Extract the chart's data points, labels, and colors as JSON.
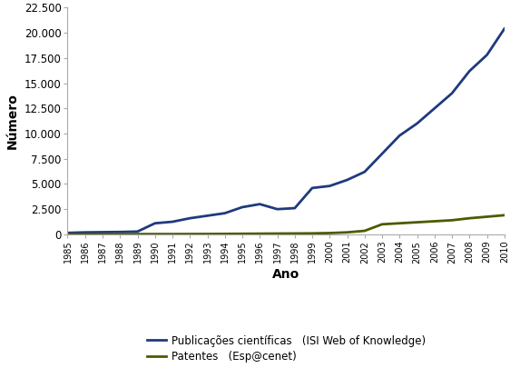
{
  "years": [
    1985,
    1986,
    1987,
    1988,
    1989,
    1990,
    1991,
    1992,
    1993,
    1994,
    1995,
    1996,
    1997,
    1998,
    1999,
    2000,
    2001,
    2002,
    2003,
    2004,
    2005,
    2006,
    2007,
    2008,
    2009,
    2010
  ],
  "publications": [
    150,
    200,
    220,
    240,
    280,
    1100,
    1250,
    1600,
    1850,
    2100,
    2700,
    3000,
    2500,
    2600,
    4600,
    4800,
    5400,
    6200,
    8000,
    9800,
    11000,
    12500,
    14000,
    16200,
    17800,
    20400
  ],
  "patents": [
    10,
    15,
    20,
    20,
    25,
    30,
    30,
    35,
    40,
    50,
    60,
    70,
    80,
    90,
    100,
    130,
    200,
    350,
    1000,
    1100,
    1200,
    1300,
    1400,
    1600,
    1750,
    1900
  ],
  "pub_color": "#1F3A7D",
  "pat_color": "#4D5A00",
  "pub_label": "Publicações científicas   (ISI Web of Knowledge)",
  "pat_label": "Patentes   (Esp@cenet)",
  "xlabel": "Ano",
  "ylabel": "Número",
  "ylim_max": 22500,
  "yticks": [
    0,
    2500,
    5000,
    7500,
    10000,
    12500,
    15000,
    17500,
    20000,
    22500
  ],
  "line_width": 2.0,
  "bg_color": "#FFFFFF"
}
